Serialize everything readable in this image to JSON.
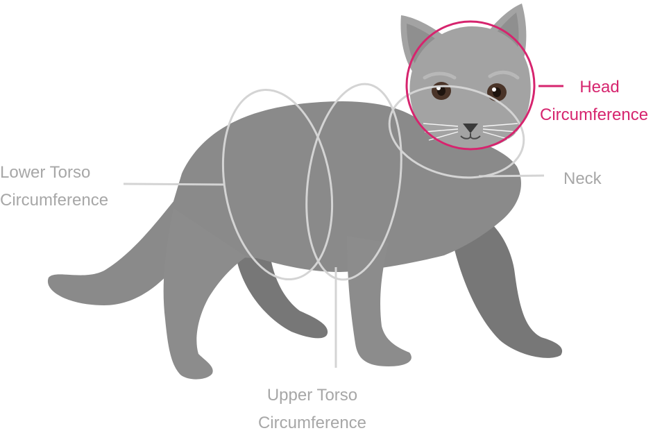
{
  "labels": {
    "head": [
      "Head",
      "Circumference"
    ],
    "neck": "Neck",
    "lower_torso": [
      "Lower Torso",
      "Circumference"
    ],
    "upper_torso": [
      "Upper Torso",
      "Circumference"
    ]
  },
  "colors": {
    "body": "#8a8a8a",
    "body_dark": "#7a7a7a",
    "head": "#a3a3a3",
    "measure_line": "#d4d4d4",
    "head_highlight": "#d6246e",
    "label_gray": "#a7a7a7",
    "eye": "#4a3428"
  },
  "icons": [
    "cat-illustration"
  ]
}
